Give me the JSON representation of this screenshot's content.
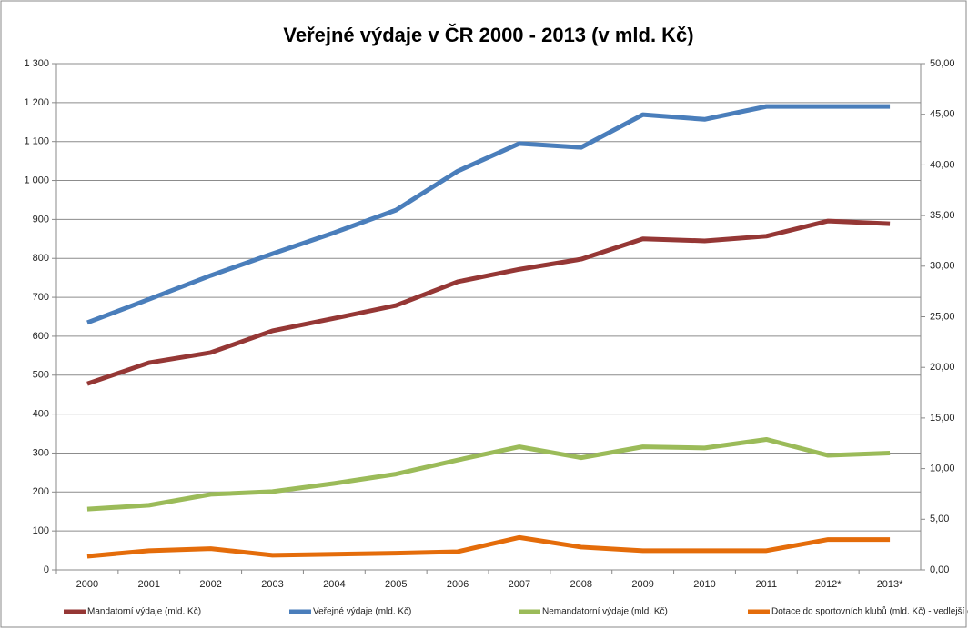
{
  "chart_data": {
    "type": "line",
    "title": "Veřejné výdaje v ČR 2000 - 2013 (v mld. Kč)",
    "categories": [
      "2000",
      "2001",
      "2002",
      "2003",
      "2004",
      "2005",
      "2006",
      "2007",
      "2008",
      "2009",
      "2010",
      "2011",
      "2012*",
      "2013*"
    ],
    "series": [
      {
        "name": "Mandatorní výdaje (mld. Kč)",
        "color": "#953735",
        "values": [
          478,
          532,
          558,
          614,
          646,
          679,
          740,
          772,
          798,
          850,
          845,
          857,
          896,
          889
        ]
      },
      {
        "name": "Veřejné výdaje (mld. Kč)",
        "color": "#4a7ebb",
        "values": [
          635,
          695,
          756,
          812,
          866,
          924,
          1024,
          1095,
          1085,
          1169,
          1157,
          1190,
          1190,
          1190
        ]
      },
      {
        "name": "Nemandatorní výdaje (mld. Kč)",
        "color": "#9bbb59",
        "values": [
          156,
          166,
          194,
          201,
          222,
          246,
          282,
          316,
          288,
          316,
          313,
          335,
          294,
          300
        ]
      },
      {
        "name": "Dotace do sportovních klubů (mld. Kč) - vedlejší osa",
        "color": "#e46c0a",
        "axis": "y2",
        "values": [
          1.35,
          1.9,
          2.1,
          1.45,
          1.55,
          1.65,
          1.8,
          3.2,
          2.25,
          1.9,
          1.9,
          1.9,
          3.0,
          3.0
        ]
      }
    ],
    "ylim": [
      0,
      1300
    ],
    "yticks": [
      0,
      100,
      200,
      300,
      400,
      500,
      600,
      700,
      800,
      900,
      {
        "value": 1000,
        "label": "1 000"
      },
      {
        "value": 1100,
        "label": "1 100"
      },
      {
        "value": 1200,
        "label": "1 200"
      },
      {
        "value": 1300,
        "label": "1 300"
      }
    ],
    "y2lim": [
      0,
      50
    ],
    "y2ticks": [
      {
        "value": 0,
        "label": "0,00"
      },
      {
        "value": 5,
        "label": "5,00"
      },
      {
        "value": 10,
        "label": "10,00"
      },
      {
        "value": 15,
        "label": "15,00"
      },
      {
        "value": 20,
        "label": "20,00"
      },
      {
        "value": 25,
        "label": "25,00"
      },
      {
        "value": 30,
        "label": "30,00"
      },
      {
        "value": 35,
        "label": "35,00"
      },
      {
        "value": 40,
        "label": "40,00"
      },
      {
        "value": 45,
        "label": "45,00"
      },
      {
        "value": 50,
        "label": "50,00"
      }
    ],
    "grid": true,
    "legend": "bottom"
  }
}
